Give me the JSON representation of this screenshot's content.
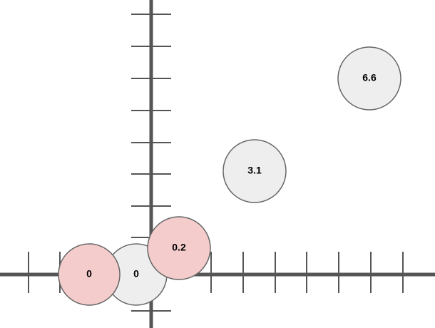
{
  "nodes": [
    {
      "label": "0",
      "highlighted": false
    },
    {
      "label": "0",
      "highlighted": true
    },
    {
      "label": "0.2",
      "highlighted": true
    },
    {
      "label": "3.1",
      "highlighted": false
    },
    {
      "label": "6.6",
      "highlighted": false
    }
  ]
}
